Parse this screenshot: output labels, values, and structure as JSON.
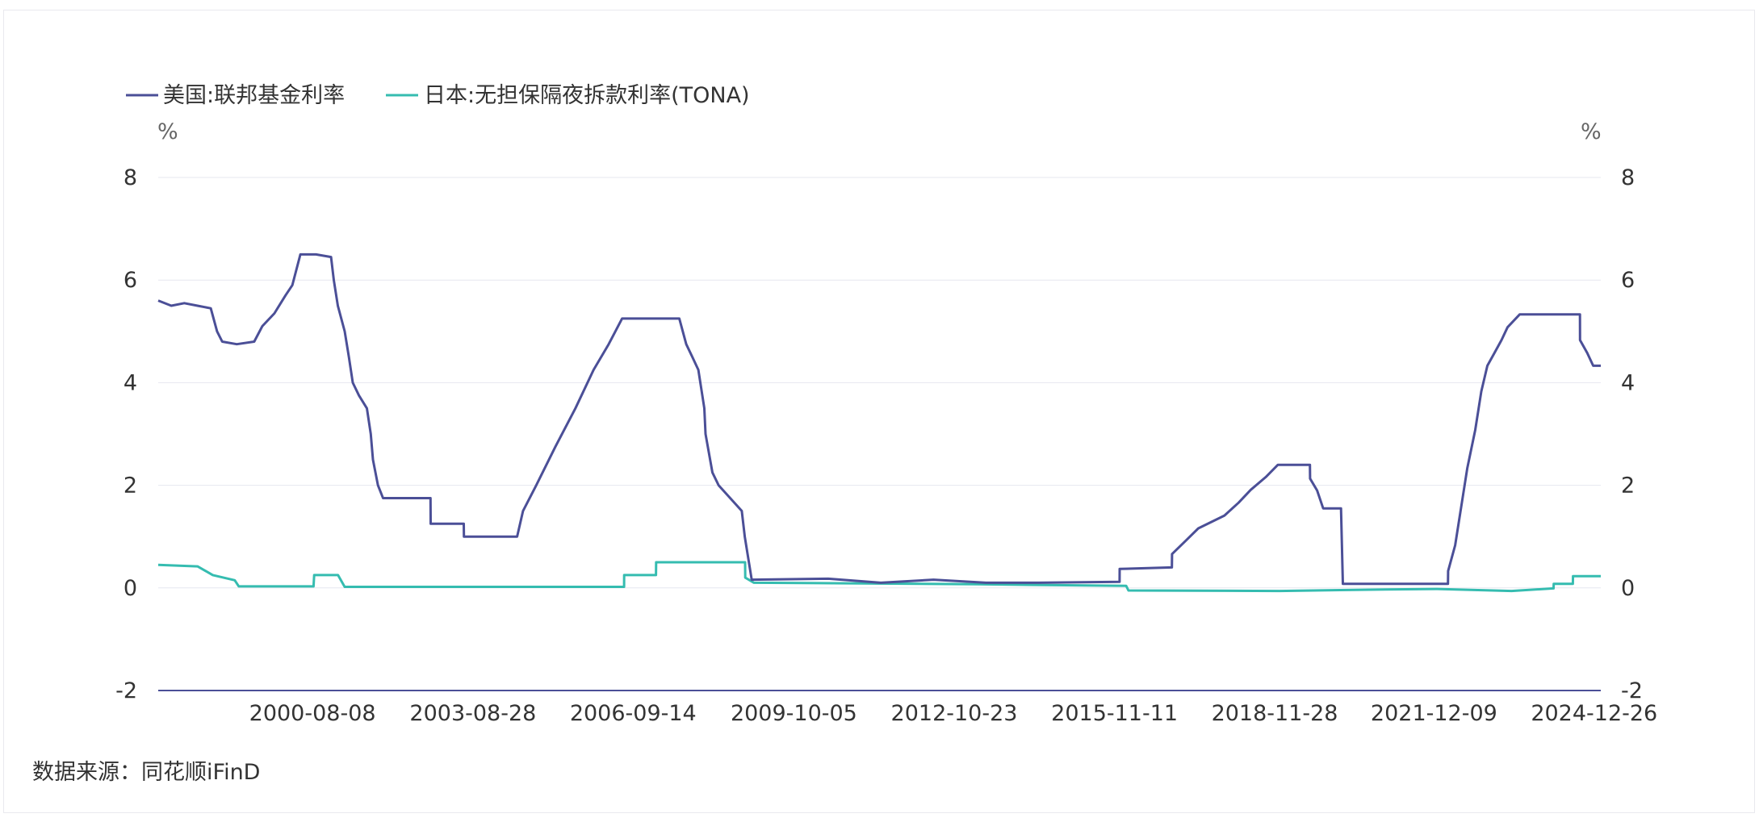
{
  "source_note": "数据来源：同花顺iFinD",
  "chart_data": {
    "type": "line",
    "title": "",
    "left_unit": "%",
    "right_unit": "%",
    "y_range": [
      -2,
      8
    ],
    "y_ticks": [
      8,
      6,
      4,
      2,
      0,
      -2
    ],
    "x_range": [
      "1997-09-01",
      "2025-02-10"
    ],
    "x_ticks": [
      "2000-08-08",
      "2003-08-28",
      "2006-09-14",
      "2009-10-05",
      "2012-10-23",
      "2015-11-11",
      "2018-11-28",
      "2021-12-09",
      "2024-12-26"
    ],
    "grid": true,
    "legend": "top-left",
    "series": [
      {
        "name": "美国:联邦基金利率",
        "color": "#4b4f97",
        "points": [
          [
            "1997-09-01",
            5.6
          ],
          [
            "1997-12-01",
            5.5
          ],
          [
            "1998-03-01",
            5.55
          ],
          [
            "1998-06-01",
            5.5
          ],
          [
            "1998-09-01",
            5.45
          ],
          [
            "1998-10-15",
            5.0
          ],
          [
            "1998-11-20",
            4.8
          ],
          [
            "1999-03-01",
            4.75
          ],
          [
            "1999-06-30",
            4.8
          ],
          [
            "1999-08-25",
            5.1
          ],
          [
            "1999-11-17",
            5.35
          ],
          [
            "2000-02-02",
            5.7
          ],
          [
            "2000-03-21",
            5.9
          ],
          [
            "2000-05-16",
            6.5
          ],
          [
            "2000-09-01",
            6.5
          ],
          [
            "2000-12-15",
            6.45
          ],
          [
            "2001-01-03",
            6.0
          ],
          [
            "2001-01-31",
            5.5
          ],
          [
            "2001-03-20",
            5.0
          ],
          [
            "2001-04-18",
            4.5
          ],
          [
            "2001-05-15",
            4.0
          ],
          [
            "2001-06-27",
            3.75
          ],
          [
            "2001-08-21",
            3.5
          ],
          [
            "2001-09-17",
            3.0
          ],
          [
            "2001-10-02",
            2.5
          ],
          [
            "2001-11-06",
            2.0
          ],
          [
            "2001-12-11",
            1.75
          ],
          [
            "2002-11-06",
            1.75
          ],
          [
            "2002-11-07",
            1.25
          ],
          [
            "2003-06-25",
            1.25
          ],
          [
            "2003-06-26",
            1.0
          ],
          [
            "2004-06-30",
            1.0
          ],
          [
            "2004-08-10",
            1.5
          ],
          [
            "2004-11-10",
            2.0
          ],
          [
            "2005-03-22",
            2.75
          ],
          [
            "2005-08-09",
            3.5
          ],
          [
            "2005-12-13",
            4.25
          ],
          [
            "2006-03-28",
            4.75
          ],
          [
            "2006-06-29",
            5.25
          ],
          [
            "2007-08-01",
            5.25
          ],
          [
            "2007-09-18",
            4.75
          ],
          [
            "2007-10-31",
            4.5
          ],
          [
            "2007-12-11",
            4.25
          ],
          [
            "2008-01-22",
            3.5
          ],
          [
            "2008-01-30",
            3.0
          ],
          [
            "2008-03-18",
            2.25
          ],
          [
            "2008-04-30",
            2.0
          ],
          [
            "2008-10-08",
            1.5
          ],
          [
            "2008-10-29",
            1.0
          ],
          [
            "2008-12-16",
            0.16
          ],
          [
            "2010-06-01",
            0.18
          ],
          [
            "2011-06-01",
            0.1
          ],
          [
            "2012-06-01",
            0.16
          ],
          [
            "2013-06-01",
            0.1
          ],
          [
            "2014-06-01",
            0.1
          ],
          [
            "2015-12-16",
            0.12
          ],
          [
            "2015-12-17",
            0.37
          ],
          [
            "2016-12-14",
            0.4
          ],
          [
            "2016-12-15",
            0.66
          ],
          [
            "2017-03-16",
            0.91
          ],
          [
            "2017-06-15",
            1.16
          ],
          [
            "2017-12-14",
            1.41
          ],
          [
            "2018-03-22",
            1.66
          ],
          [
            "2018-06-14",
            1.91
          ],
          [
            "2018-09-27",
            2.16
          ],
          [
            "2018-12-20",
            2.4
          ],
          [
            "2019-07-31",
            2.4
          ],
          [
            "2019-08-01",
            2.13
          ],
          [
            "2019-09-19",
            1.9
          ],
          [
            "2019-10-31",
            1.55
          ],
          [
            "2020-03-03",
            1.55
          ],
          [
            "2020-03-16",
            0.08
          ],
          [
            "2022-03-16",
            0.08
          ],
          [
            "2022-03-17",
            0.33
          ],
          [
            "2022-05-05",
            0.83
          ],
          [
            "2022-06-16",
            1.58
          ],
          [
            "2022-07-28",
            2.33
          ],
          [
            "2022-09-22",
            3.08
          ],
          [
            "2022-11-03",
            3.83
          ],
          [
            "2022-12-15",
            4.33
          ],
          [
            "2023-02-02",
            4.58
          ],
          [
            "2023-03-23",
            4.83
          ],
          [
            "2023-05-04",
            5.08
          ],
          [
            "2023-07-27",
            5.33
          ],
          [
            "2024-09-18",
            5.33
          ],
          [
            "2024-09-19",
            4.83
          ],
          [
            "2024-11-08",
            4.58
          ],
          [
            "2024-12-19",
            4.33
          ],
          [
            "2025-02-10",
            4.33
          ]
        ]
      },
      {
        "name": "日本:无担保隔夜拆款利率(TONA)",
        "color": "#35bcb0",
        "points": [
          [
            "1997-09-01",
            0.45
          ],
          [
            "1998-06-01",
            0.42
          ],
          [
            "1998-09-15",
            0.25
          ],
          [
            "1999-02-15",
            0.15
          ],
          [
            "1999-03-15",
            0.03
          ],
          [
            "2000-08-15",
            0.03
          ],
          [
            "2000-08-20",
            0.25
          ],
          [
            "2001-02-01",
            0.25
          ],
          [
            "2001-03-20",
            0.02
          ],
          [
            "2006-07-13",
            0.02
          ],
          [
            "2006-07-14",
            0.25
          ],
          [
            "2007-02-20",
            0.25
          ],
          [
            "2007-02-21",
            0.5
          ],
          [
            "2008-10-31",
            0.5
          ],
          [
            "2008-11-01",
            0.2
          ],
          [
            "2009-01-01",
            0.1
          ],
          [
            "2010-10-05",
            0.09
          ],
          [
            "2013-04-04",
            0.07
          ],
          [
            "2016-01-31",
            0.04
          ],
          [
            "2016-02-16",
            -0.05
          ],
          [
            "2019-01-01",
            -0.06
          ],
          [
            "2021-01-01",
            -0.03
          ],
          [
            "2022-01-01",
            -0.02
          ],
          [
            "2023-06-01",
            -0.06
          ],
          [
            "2024-03-19",
            -0.01
          ],
          [
            "2024-03-20",
            0.08
          ],
          [
            "2024-07-31",
            0.08
          ],
          [
            "2024-08-01",
            0.23
          ],
          [
            "2025-02-10",
            0.23
          ]
        ]
      }
    ]
  }
}
